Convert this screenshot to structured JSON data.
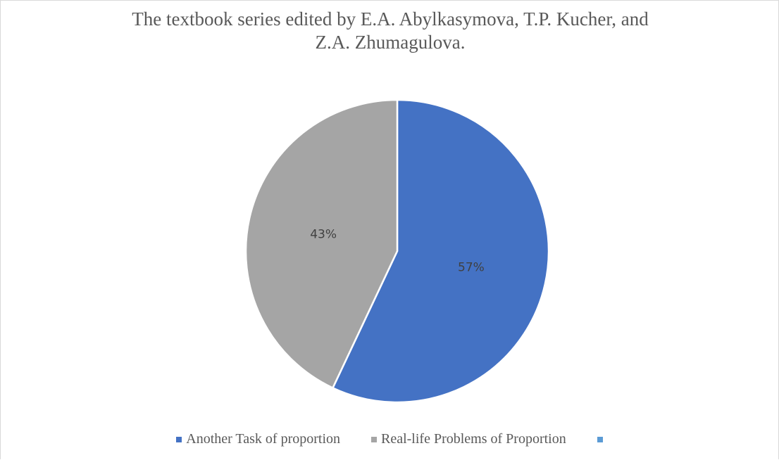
{
  "chart_data": {
    "type": "pie",
    "title": "The textbook series edited by E.A. Abylkasymova, T.P. Kucher, and Z.A. Zhumagulova.",
    "categories": [
      "Another Task of proportion",
      "Real-life Problems of Proportion",
      null
    ],
    "values": [
      57,
      43,
      null
    ],
    "value_labels": [
      "57%",
      "43%",
      null
    ],
    "colors": [
      "#4472c4",
      "#a5a5a5",
      "#5b9bd5"
    ],
    "legend": "bottom"
  }
}
